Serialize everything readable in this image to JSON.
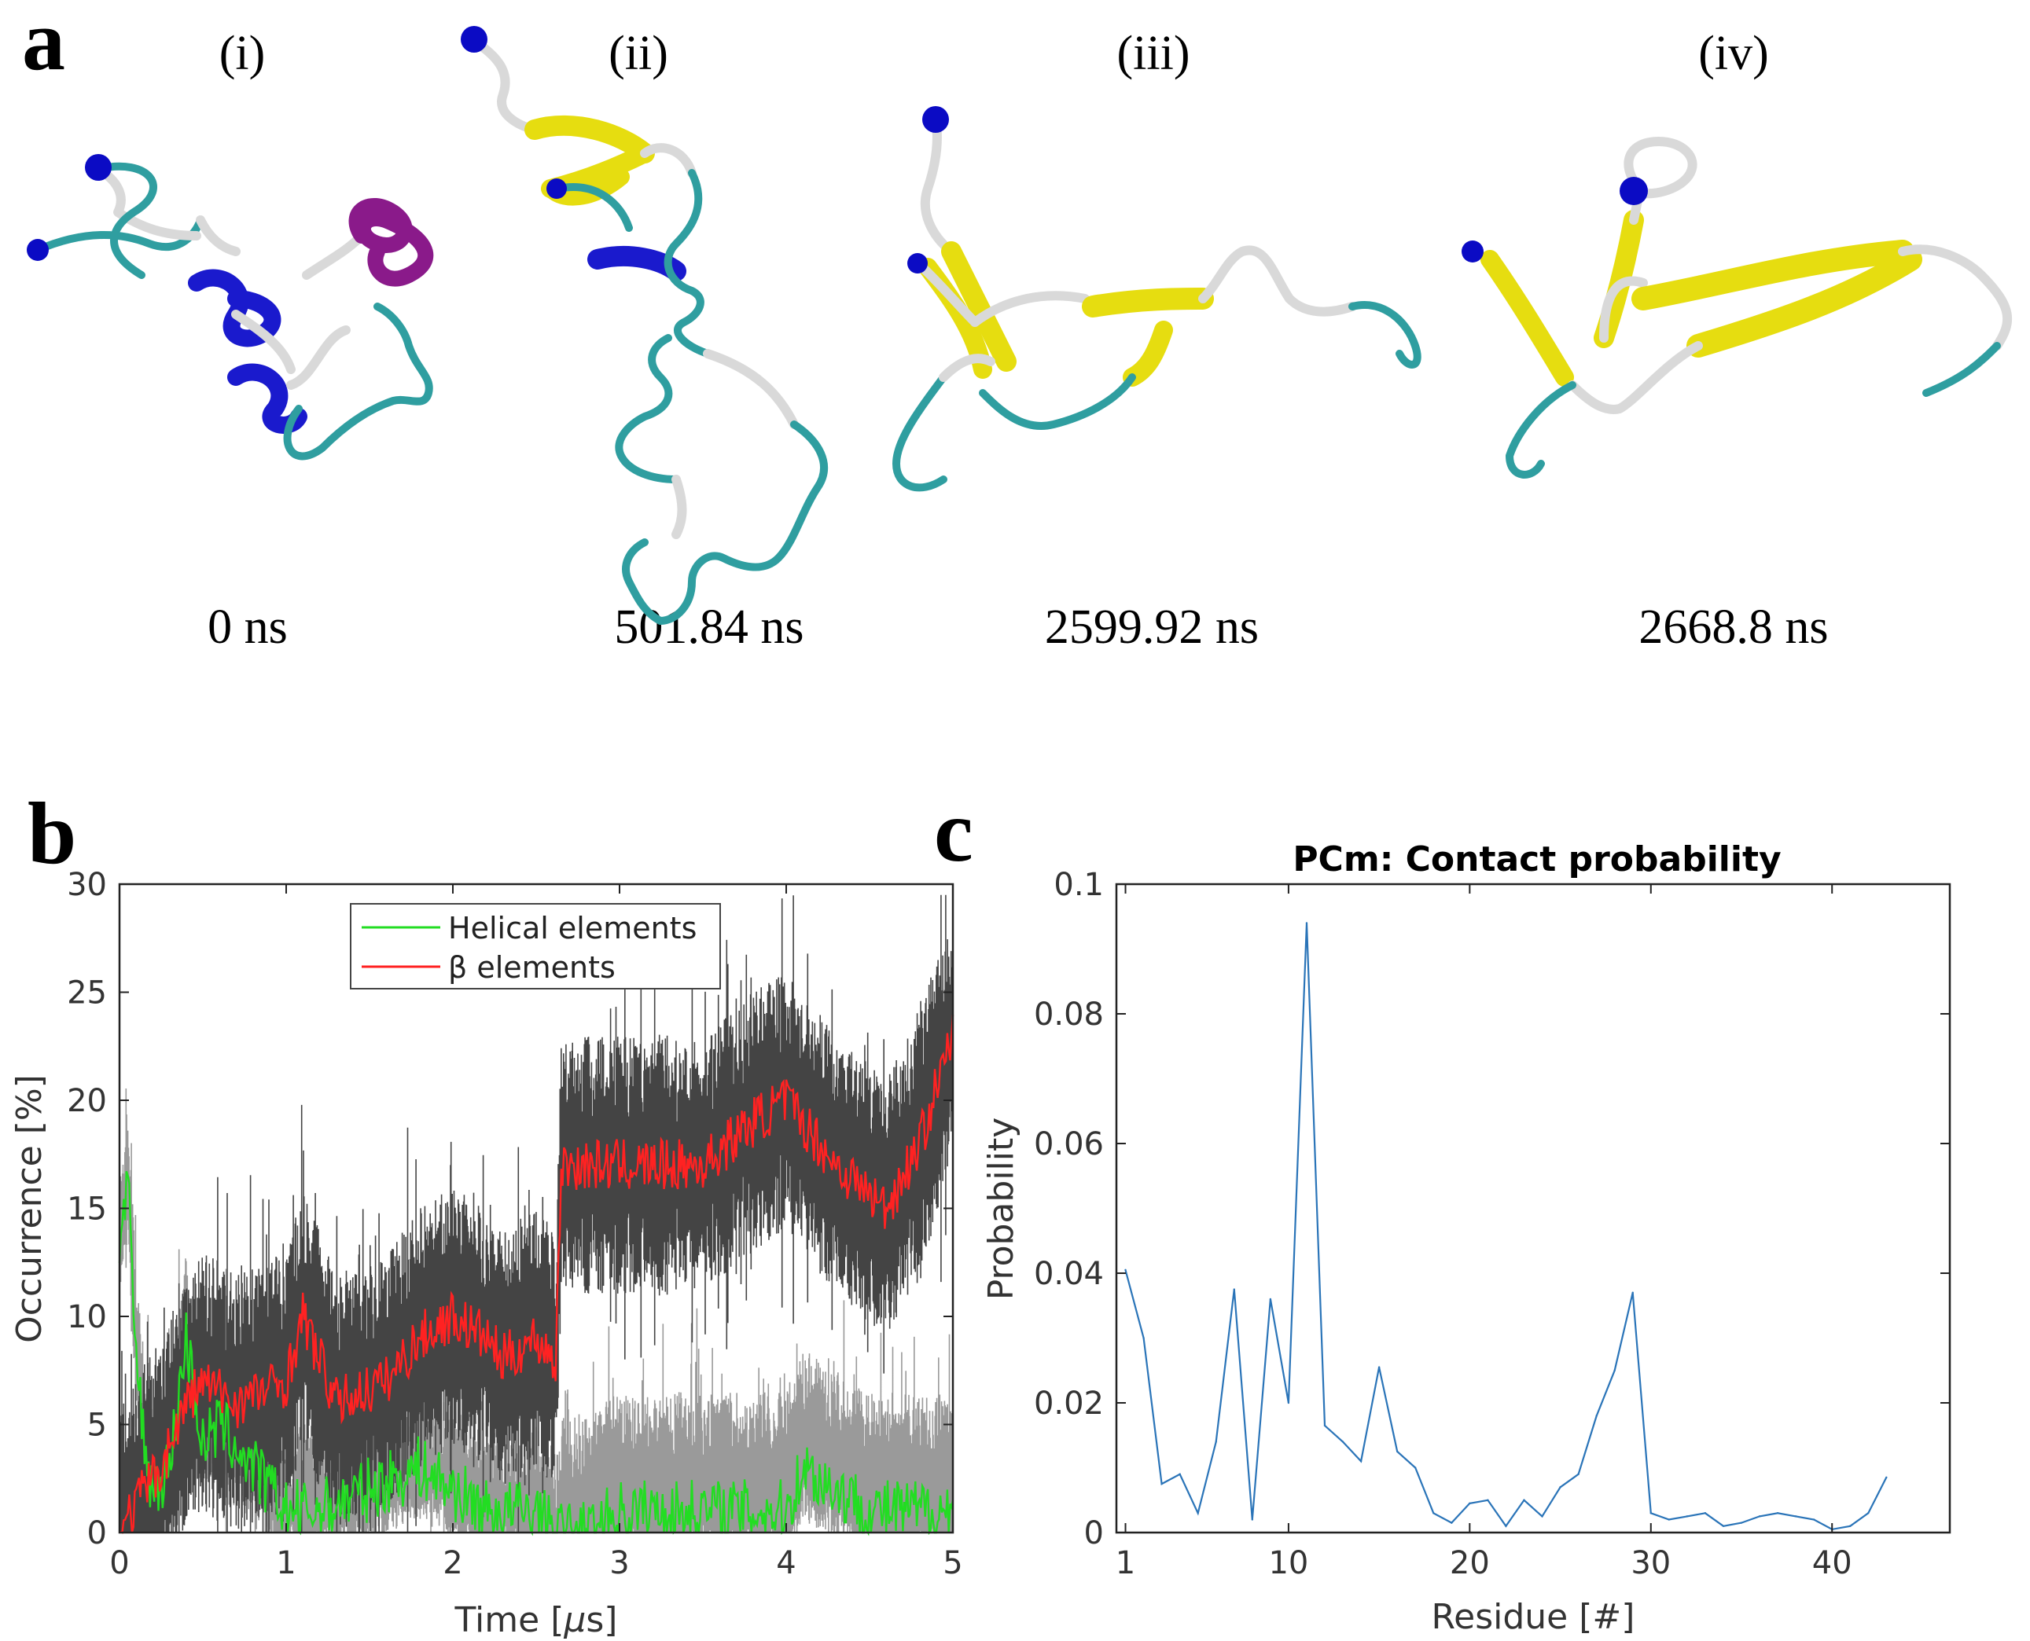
{
  "panel_a": {
    "label": "a",
    "snapshots": [
      {
        "roman": "(i)",
        "time": "0 ns"
      },
      {
        "roman": "(ii)",
        "time": "501.84 ns"
      },
      {
        "roman": "(iii)",
        "time": "2599.92 ns"
      },
      {
        "roman": "(iv)",
        "time": "2668.8 ns"
      }
    ],
    "colors": {
      "coil": "#2f9ea0",
      "turn": "#d9d9d9",
      "helix": "#1a1acd",
      "helix_pi": "#8a1a8a",
      "sheet": "#e6dd10",
      "terminus": "#0b0bc4"
    }
  },
  "chart_data": [
    {
      "panel_label": "b",
      "type": "line",
      "title": "",
      "xlabel_prefix": "Time [",
      "xlabel_mu": "μ",
      "xlabel_suffix": "s]",
      "ylabel": "Occurrence [%]",
      "xlim": [
        0,
        5
      ],
      "ylim": [
        0,
        30
      ],
      "xticks": [
        0,
        1,
        2,
        3,
        4,
        5
      ],
      "yticks": [
        0,
        5,
        10,
        15,
        20,
        25,
        30
      ],
      "legend_position": "top-center",
      "series": [
        {
          "name": "Helical elements",
          "color": "#22dd22",
          "x": [
            0,
            0.05,
            0.1,
            0.15,
            0.2,
            0.3,
            0.4,
            0.5,
            0.6,
            0.8,
            1.0,
            1.2,
            1.5,
            1.8,
            2.0,
            2.2,
            2.5,
            2.6,
            2.8,
            3.0,
            3.5,
            4.0,
            4.1,
            4.5,
            5.0
          ],
          "y": [
            13,
            16,
            8,
            4,
            2,
            3,
            9,
            4,
            5,
            3,
            1,
            1,
            2,
            3,
            2,
            1,
            1,
            0,
            0,
            1,
            1,
            1,
            3,
            1,
            1
          ]
        },
        {
          "name": "β elements",
          "color": "#ff2222",
          "x": [
            0,
            0.15,
            0.25,
            0.4,
            0.5,
            0.7,
            1.0,
            1.1,
            1.3,
            1.6,
            1.8,
            2.0,
            2.2,
            2.3,
            2.5,
            2.62,
            2.65,
            2.8,
            3.2,
            3.5,
            3.8,
            4.0,
            4.3,
            4.6,
            4.8,
            5.0
          ],
          "y": [
            0,
            2,
            3,
            6,
            7,
            6,
            7,
            10,
            6,
            7,
            9,
            10,
            9,
            8,
            9,
            8,
            17,
            17,
            17,
            17,
            19,
            20,
            17,
            15,
            18,
            23
          ]
        }
      ]
    },
    {
      "panel_label": "c",
      "type": "line",
      "title": "PCm: Contact probability",
      "xlabel": "Residue [#]",
      "ylabel": "Probability",
      "xlim": [
        0.5,
        46.5
      ],
      "ylim": [
        0,
        0.1
      ],
      "xticks": [
        1,
        10,
        20,
        30,
        40
      ],
      "yticks": [
        0,
        0.02,
        0.04,
        0.06,
        0.08,
        0.1
      ],
      "ytick_labels": [
        "0",
        "0.02",
        "0.04",
        "0.06",
        "0.08",
        "0.1"
      ],
      "series": [
        {
          "name": "Contact probability",
          "color": "#2a74b8",
          "x": [
            1,
            2,
            3,
            4,
            5,
            6,
            7,
            8,
            9,
            10,
            11,
            12,
            13,
            14,
            15,
            16,
            17,
            18,
            19,
            20,
            21,
            22,
            23,
            24,
            25,
            26,
            27,
            28,
            29,
            30,
            31,
            32,
            33,
            34,
            35,
            36,
            37,
            38,
            39,
            40,
            41,
            42,
            43
          ],
          "y": [
            0.0405,
            0.03,
            0.0075,
            0.009,
            0.003,
            0.014,
            0.0375,
            0.002,
            0.036,
            0.02,
            0.094,
            0.0165,
            0.014,
            0.011,
            0.0255,
            0.0125,
            0.01,
            0.003,
            0.0015,
            0.0045,
            0.005,
            0.001,
            0.005,
            0.0025,
            0.007,
            0.009,
            0.018,
            0.025,
            0.037,
            0.003,
            0.002,
            0.0025,
            0.003,
            0.001,
            0.0015,
            0.0025,
            0.003,
            0.0025,
            0.002,
            0.0005,
            0.001,
            0.003,
            0.0085
          ]
        }
      ]
    }
  ]
}
